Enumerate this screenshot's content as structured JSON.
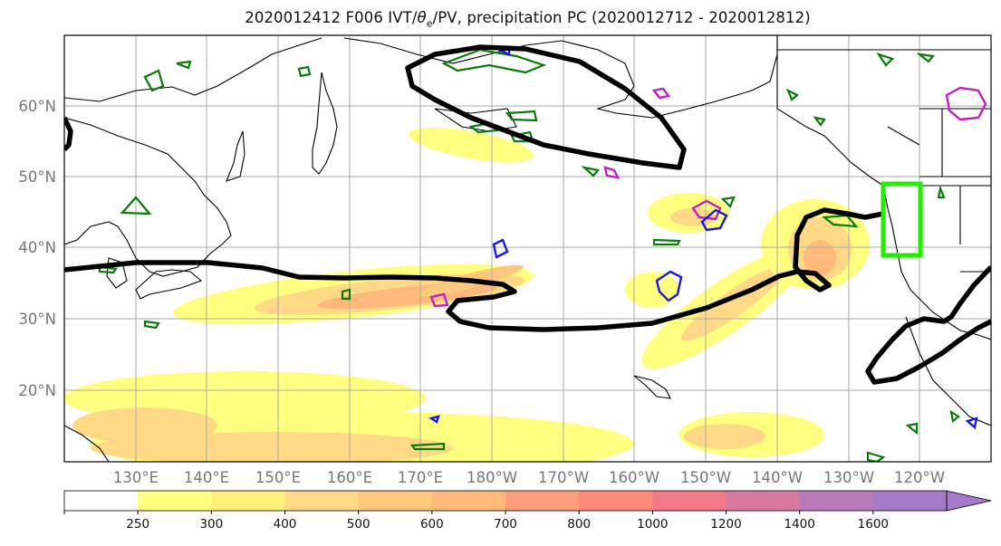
{
  "title": {
    "prefix": "2020012412 F006 IVT/",
    "theta": "θ",
    "theta_sub": "e",
    "suffix": "/PV, precipitation PC (2020012712 - 2020012812)"
  },
  "map": {
    "lat_labels": [
      "60°N",
      "50°N",
      "40°N",
      "30°N",
      "20°N"
    ],
    "lon_labels": [
      "130°E",
      "140°E",
      "150°E",
      "160°E",
      "170°E",
      "180°W",
      "170°W",
      "160°W",
      "150°W",
      "140°W",
      "130°W",
      "120°W"
    ]
  },
  "colorbar": {
    "ticks": [
      "250",
      "300",
      "400",
      "500",
      "600",
      "700",
      "800",
      "1000",
      "1200",
      "1400",
      "1600"
    ],
    "colors": [
      "#ffffff",
      "#ffff80",
      "#fff07a",
      "#ffd985",
      "#ffc97d",
      "#ffb97a",
      "#ff9e78",
      "#ff8a7a",
      "#f07a88",
      "#d87aa0",
      "#b87ab8",
      "#a57ac8"
    ]
  }
}
